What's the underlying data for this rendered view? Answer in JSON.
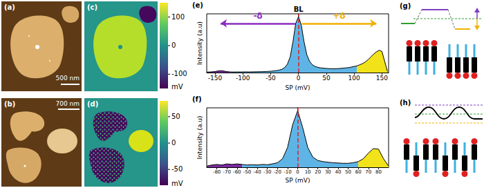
{
  "panels": {
    "a": {
      "label": "(a)",
      "scale_bar": "500 nm"
    },
    "b": {
      "label": "(b)",
      "scale_bar": "700 nm"
    },
    "c": {
      "label": "(c)",
      "colorbar": {
        "range": [
          -150,
          150
        ],
        "ticks": [
          100,
          0,
          -100
        ],
        "unit": "mV"
      }
    },
    "d": {
      "label": "(d)",
      "colorbar": {
        "range": [
          -80,
          80
        ],
        "ticks": [
          50,
          0,
          -50
        ],
        "unit": "mV"
      }
    },
    "g": {
      "label": "(g)"
    },
    "h": {
      "label": "(h)"
    }
  },
  "chart_data": [
    {
      "label": "(e)",
      "type": "line",
      "x_label": "SP (mV)",
      "y_label": "Intensity (a.u)",
      "x": [
        -165,
        -160,
        -155,
        -150,
        -145,
        -140,
        -135,
        -130,
        -125,
        -120,
        -115,
        -110,
        -105,
        -100,
        -95,
        -90,
        -85,
        -80,
        -75,
        -70,
        -65,
        -60,
        -55,
        -50,
        -45,
        -40,
        -35,
        -30,
        -25,
        -20,
        -15,
        -10,
        -5,
        0,
        5,
        10,
        15,
        20,
        25,
        30,
        35,
        40,
        45,
        50,
        55,
        60,
        65,
        70,
        75,
        80,
        85,
        90,
        95,
        100,
        105,
        110,
        115,
        120,
        125,
        130,
        135,
        140,
        145,
        150,
        155,
        160
      ],
      "values": [
        0.01,
        0.012,
        0.015,
        0.02,
        0.03,
        0.035,
        0.03,
        0.02,
        0.015,
        0.012,
        0.012,
        0.013,
        0.012,
        0.013,
        0.014,
        0.013,
        0.014,
        0.015,
        0.016,
        0.017,
        0.018,
        0.02,
        0.022,
        0.025,
        0.03,
        0.035,
        0.045,
        0.06,
        0.09,
        0.15,
        0.28,
        0.55,
        0.88,
        1.0,
        0.85,
        0.55,
        0.32,
        0.2,
        0.14,
        0.11,
        0.095,
        0.085,
        0.08,
        0.075,
        0.072,
        0.07,
        0.07,
        0.072,
        0.075,
        0.08,
        0.085,
        0.09,
        0.1,
        0.11,
        0.12,
        0.14,
        0.16,
        0.19,
        0.23,
        0.28,
        0.33,
        0.37,
        0.4,
        0.38,
        0.2,
        0.02
      ],
      "color": "#000000",
      "xlim": [
        -165,
        162
      ],
      "xticks": [
        -150,
        -100,
        -50,
        0,
        50,
        100,
        150
      ],
      "ylim": [
        0,
        1.05
      ],
      "tick_labels": "x",
      "grid": false,
      "fill_regions": [
        {
          "from": -165,
          "to": -125,
          "color": "#7b2a9e"
        },
        {
          "from": -125,
          "to": 105,
          "color": "#5fb4e6"
        },
        {
          "from": 105,
          "to": 160,
          "color": "#f2e21a"
        }
      ],
      "vline": {
        "x": 0,
        "label": "BL"
      },
      "arrows": [
        {
          "text": "-δ",
          "from": -6,
          "to": -140,
          "y": 0.88,
          "color": "#8a2cc0"
        },
        {
          "text": "+δ",
          "from": 6,
          "to": 140,
          "y": 0.88,
          "color": "#f0b000"
        }
      ]
    },
    {
      "label": "(f)",
      "type": "line",
      "x_label": "SP (mV)",
      "y_label": "Intensity (a.u)",
      "x": [
        -90,
        -85,
        -80,
        -75,
        -70,
        -65,
        -60,
        -55,
        -50,
        -45,
        -40,
        -35,
        -30,
        -25,
        -20,
        -15,
        -10,
        -5,
        0,
        5,
        10,
        15,
        20,
        25,
        30,
        35,
        40,
        45,
        50,
        55,
        60,
        65,
        70,
        75,
        80,
        85,
        90
      ],
      "values": [
        0.02,
        0.04,
        0.05,
        0.04,
        0.06,
        0.05,
        0.06,
        0.05,
        0.04,
        0.045,
        0.04,
        0.05,
        0.045,
        0.06,
        0.08,
        0.15,
        0.35,
        0.75,
        1.0,
        0.7,
        0.35,
        0.18,
        0.12,
        0.1,
        0.09,
        0.08,
        0.075,
        0.07,
        0.07,
        0.08,
        0.1,
        0.15,
        0.25,
        0.33,
        0.32,
        0.15,
        0.02
      ],
      "color": "#000000",
      "xlim": [
        -90,
        90
      ],
      "xticks": [
        -80,
        -70,
        -60,
        -50,
        -40,
        -30,
        -20,
        -10,
        0,
        10,
        20,
        30,
        40,
        50,
        60,
        70,
        80
      ],
      "ylim": [
        0,
        1.05
      ],
      "tick_labels": "x",
      "grid": false,
      "fill_regions": [
        {
          "from": -90,
          "to": -55,
          "color": "#7b2a9e"
        },
        {
          "from": -55,
          "to": 60,
          "color": "#5fb4e6"
        },
        {
          "from": 60,
          "to": 90,
          "color": "#f2e21a"
        }
      ],
      "vline": {
        "x": 0
      }
    }
  ]
}
